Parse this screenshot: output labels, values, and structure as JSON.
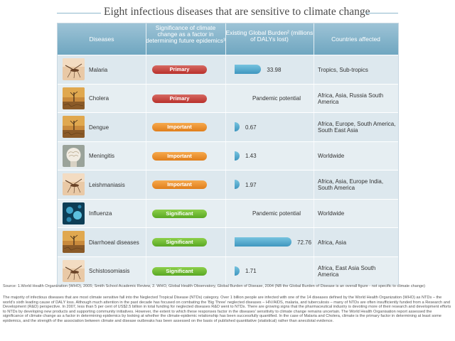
{
  "title": "Eight infectious diseases that are sensitive to climate change",
  "headers": {
    "diseases": "Diseases",
    "significance": "Significance of climate change as a factor in determining future epidemics³",
    "burden": "Existing Global Burden² (millions of DALYs lost)",
    "countries": "Countries affected"
  },
  "rows": [
    {
      "disease": "Malaria",
      "icon": "mosquito-icon",
      "significance": "Primary",
      "level": "primary",
      "burden_value": 33.98,
      "burden_label": "33.98",
      "countries": "Tropics, Sub-tropics"
    },
    {
      "disease": "Cholera",
      "icon": "dry-land-icon",
      "significance": "Primary",
      "level": "primary",
      "burden_value": null,
      "burden_label": "Pandemic potential",
      "countries": "Africa, Asia, Russia South America"
    },
    {
      "disease": "Dengue",
      "icon": "dry-land-icon",
      "significance": "Important",
      "level": "important",
      "burden_value": 0.67,
      "burden_label": "0.67",
      "countries": "Africa, Europe, South America, South East Asia"
    },
    {
      "disease": "Meningitis",
      "icon": "brain-icon",
      "significance": "Important",
      "level": "important",
      "burden_value": 1.43,
      "burden_label": "1.43",
      "countries": "Worldwide"
    },
    {
      "disease": "Leishmaniasis",
      "icon": "mosquito-icon",
      "significance": "Important",
      "level": "important",
      "burden_value": 1.97,
      "burden_label": "1.97",
      "countries": "Africa, Asia, Europe India, South America"
    },
    {
      "disease": "Influenza",
      "icon": "virus-icon",
      "significance": "Significant",
      "level": "significant",
      "burden_value": null,
      "burden_label": "Pandemic potential",
      "countries": "Worldwide"
    },
    {
      "disease": "Diarrhoeal diseases",
      "icon": "dry-land-icon",
      "significance": "Significant",
      "level": "significant",
      "burden_value": 72.76,
      "burden_label": "72.76",
      "countries": "Africa, Asia"
    },
    {
      "disease": "Schistosomiasis",
      "icon": "mosquito-icon",
      "significance": "Significant",
      "level": "significant",
      "burden_value": 1.71,
      "burden_label": "1.71",
      "countries": "Africa, East Asia South America"
    }
  ],
  "source": "Source: 1.World Health Organization (WHO), 2005; Smith School Academic Review, 2. WHO, Global Health Observatory, Global Burden of Disease, 2004 (NB the Global Burden of Disease is an overall figure - not specific to climate change)",
  "note": "The majority of infectious diseases that are most climate sensitive fall into the Neglected Tropical Disease (NTDs) category. Over 1 billion people are infected with one of the 14 diseases defined by the World Health Organization (WHO) as NTDs – the world's sixth leading cause of DALY loss. Although much attention in the past decade has focused on combating the 'Big Three' neglected diseases – HIV/AIDS, malaria, and tuberculosis – many of NTDs are often insufficiently funded from a Research and Development (R&D) perspective. In 2007, less than 5 per cent of US$2.5 billion in total funding for neglected diseases R&D went to NTDs. There are growing signs that the pharmaceutical industry is devoting more of their research and development efforts to NTDs by developing new products and supporting community initiatives. However, the extent to which these responses factor in the diseases' sensitivity to climate change remains uncertain. The World Health Organisation report assessed the significance of climate change as a factor in determining epidemics by looking at whether the climate-epidemic relationship has been successfully quantified. In the case of Malaria and Cholera, climate is the primary factor in determining at least some epidemics, and the strength of the association between climate and disease outbreaks has been assessed on the basis of published quantitative (statistical) rather than anecdotal evidence.",
  "colors": {
    "primary": "#b9302b",
    "important": "#e07e1b",
    "significant": "#5aa823",
    "bar": "#3f96bf",
    "header": "#6fa6c0"
  }
}
